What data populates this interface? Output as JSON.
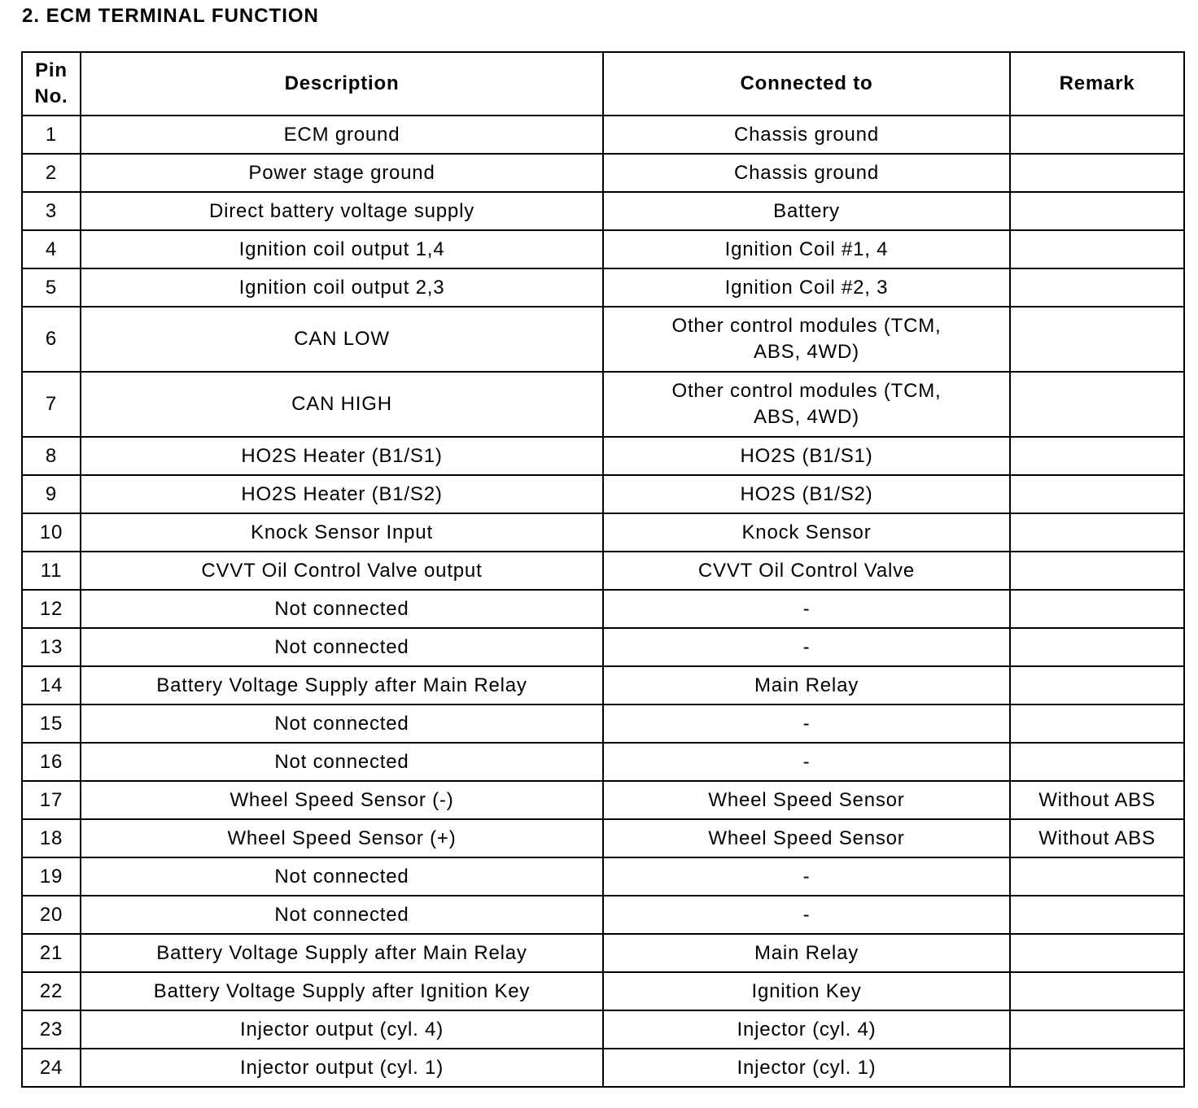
{
  "title": "2. ECM TERMINAL FUNCTION",
  "headers": {
    "pin": "Pin\nNo.",
    "description": "Description",
    "connected": "Connected to",
    "remark": "Remark"
  },
  "rows": [
    {
      "pin": "1",
      "desc": "ECM ground",
      "conn": "Chassis ground",
      "remark": ""
    },
    {
      "pin": "2",
      "desc": "Power stage ground",
      "conn": "Chassis ground",
      "remark": ""
    },
    {
      "pin": "3",
      "desc": "Direct battery voltage supply",
      "conn": "Battery",
      "remark": ""
    },
    {
      "pin": "4",
      "desc": "Ignition coil output 1,4",
      "conn": "Ignition Coil #1, 4",
      "remark": ""
    },
    {
      "pin": "5",
      "desc": "Ignition coil output 2,3",
      "conn": "Ignition Coil #2, 3",
      "remark": ""
    },
    {
      "pin": "6",
      "desc": "CAN LOW",
      "conn": "Other control modules (TCM, ABS, 4WD)",
      "remark": ""
    },
    {
      "pin": "7",
      "desc": "CAN HIGH",
      "conn": "Other control modules (TCM, ABS, 4WD)",
      "remark": ""
    },
    {
      "pin": "8",
      "desc": "HO2S Heater (B1/S1)",
      "conn": "HO2S (B1/S1)",
      "remark": ""
    },
    {
      "pin": "9",
      "desc": "HO2S Heater (B1/S2)",
      "conn": "HO2S (B1/S2)",
      "remark": ""
    },
    {
      "pin": "10",
      "desc": "Knock Sensor Input",
      "conn": "Knock Sensor",
      "remark": ""
    },
    {
      "pin": "11",
      "desc": "CVVT Oil Control Valve output",
      "conn": "CVVT Oil Control Valve",
      "remark": ""
    },
    {
      "pin": "12",
      "desc": "Not connected",
      "conn": "-",
      "remark": ""
    },
    {
      "pin": "13",
      "desc": "Not connected",
      "conn": "-",
      "remark": ""
    },
    {
      "pin": "14",
      "desc": "Battery Voltage Supply after Main Relay",
      "conn": "Main Relay",
      "remark": ""
    },
    {
      "pin": "15",
      "desc": "Not connected",
      "conn": "-",
      "remark": ""
    },
    {
      "pin": "16",
      "desc": "Not connected",
      "conn": "-",
      "remark": ""
    },
    {
      "pin": "17",
      "desc": "Wheel Speed Sensor (-)",
      "conn": "Wheel Speed Sensor",
      "remark": "Without ABS"
    },
    {
      "pin": "18",
      "desc": "Wheel Speed Sensor (+)",
      "conn": "Wheel Speed Sensor",
      "remark": "Without ABS"
    },
    {
      "pin": "19",
      "desc": "Not connected",
      "conn": "-",
      "remark": ""
    },
    {
      "pin": "20",
      "desc": "Not connected",
      "conn": "-",
      "remark": ""
    },
    {
      "pin": "21",
      "desc": "Battery Voltage Supply after Main Relay",
      "conn": "Main Relay",
      "remark": ""
    },
    {
      "pin": "22",
      "desc": "Battery Voltage Supply after Ignition Key",
      "conn": "Ignition Key",
      "remark": ""
    },
    {
      "pin": "23",
      "desc": "Injector output (cyl.  4)",
      "conn": "Injector (cyl.  4)",
      "remark": ""
    },
    {
      "pin": "24",
      "desc": "Injector output (cyl.  1)",
      "conn": "Injector (cyl.  1)",
      "remark": ""
    }
  ]
}
